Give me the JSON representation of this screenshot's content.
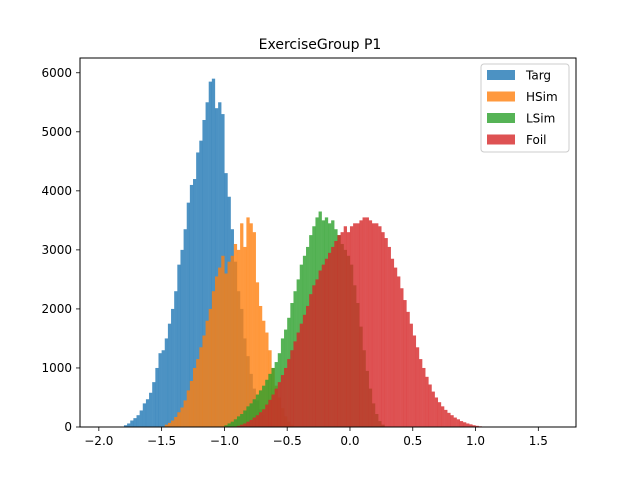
{
  "chart_data": {
    "type": "histogram",
    "title": "ExerciseGroup P1",
    "xlabel": "",
    "ylabel": "",
    "xlim": [
      -2.15,
      1.8
    ],
    "ylim": [
      0,
      6250
    ],
    "x_ticks": [
      -2.0,
      -1.5,
      -1.0,
      -0.5,
      0.0,
      0.5,
      1.0,
      1.5
    ],
    "x_tick_labels": [
      "−2.0",
      "−1.5",
      "−1.0",
      "−0.5",
      "0.0",
      "0.5",
      "1.0",
      "1.5"
    ],
    "y_ticks": [
      0,
      1000,
      2000,
      3000,
      4000,
      5000,
      6000
    ],
    "y_tick_labels": [
      "0",
      "1000",
      "2000",
      "3000",
      "4000",
      "5000",
      "6000"
    ],
    "bin_width": 0.025,
    "grid": false,
    "legend_position": "top-right",
    "alpha": 0.8,
    "series": [
      {
        "name": "Targ",
        "color": "#1f77b4",
        "bins": [
          [
            -1.8,
            30
          ],
          [
            -1.775,
            60
          ],
          [
            -1.75,
            110
          ],
          [
            -1.725,
            150
          ],
          [
            -1.7,
            200
          ],
          [
            -1.675,
            280
          ],
          [
            -1.65,
            400
          ],
          [
            -1.625,
            470
          ],
          [
            -1.6,
            580
          ],
          [
            -1.575,
            760
          ],
          [
            -1.55,
            1000
          ],
          [
            -1.525,
            1250
          ],
          [
            -1.5,
            1300
          ],
          [
            -1.475,
            1500
          ],
          [
            -1.45,
            1750
          ],
          [
            -1.425,
            2000
          ],
          [
            -1.4,
            2300
          ],
          [
            -1.375,
            2750
          ],
          [
            -1.35,
            3000
          ],
          [
            -1.325,
            3350
          ],
          [
            -1.3,
            3800
          ],
          [
            -1.275,
            4100
          ],
          [
            -1.25,
            4200
          ],
          [
            -1.225,
            4650
          ],
          [
            -1.2,
            4850
          ],
          [
            -1.175,
            5200
          ],
          [
            -1.15,
            5500
          ],
          [
            -1.125,
            5850
          ],
          [
            -1.1,
            5900
          ],
          [
            -1.075,
            5400
          ],
          [
            -1.05,
            5500
          ],
          [
            -1.025,
            5300
          ],
          [
            -1.0,
            4300
          ],
          [
            -0.975,
            3900
          ],
          [
            -0.95,
            3350
          ],
          [
            -0.925,
            2800
          ],
          [
            -0.9,
            2300
          ],
          [
            -0.875,
            2000
          ],
          [
            -0.85,
            1500
          ],
          [
            -0.825,
            1200
          ],
          [
            -0.8,
            900
          ],
          [
            -0.775,
            650
          ],
          [
            -0.75,
            450
          ],
          [
            -0.725,
            300
          ],
          [
            -0.7,
            200
          ],
          [
            -0.675,
            120
          ],
          [
            -0.65,
            70
          ],
          [
            -0.625,
            30
          ]
        ]
      },
      {
        "name": "HSim",
        "color": "#ff7f0e",
        "bins": [
          [
            -1.475,
            40
          ],
          [
            -1.45,
            70
          ],
          [
            -1.425,
            110
          ],
          [
            -1.4,
            170
          ],
          [
            -1.375,
            250
          ],
          [
            -1.35,
            330
          ],
          [
            -1.325,
            450
          ],
          [
            -1.3,
            620
          ],
          [
            -1.275,
            780
          ],
          [
            -1.25,
            1000
          ],
          [
            -1.225,
            1150
          ],
          [
            -1.2,
            1350
          ],
          [
            -1.175,
            1550
          ],
          [
            -1.15,
            1800
          ],
          [
            -1.125,
            2000
          ],
          [
            -1.1,
            2300
          ],
          [
            -1.075,
            2550
          ],
          [
            -1.05,
            2700
          ],
          [
            -1.025,
            2900
          ],
          [
            -1.0,
            2600
          ],
          [
            -0.975,
            2800
          ],
          [
            -0.95,
            2900
          ],
          [
            -0.925,
            3100
          ],
          [
            -0.9,
            3000
          ],
          [
            -0.875,
            3450
          ],
          [
            -0.85,
            3050
          ],
          [
            -0.825,
            3550
          ],
          [
            -0.8,
            3450
          ],
          [
            -0.775,
            3300
          ],
          [
            -0.75,
            2450
          ],
          [
            -0.725,
            2050
          ],
          [
            -0.7,
            1800
          ],
          [
            -0.675,
            1600
          ],
          [
            -0.65,
            1300
          ],
          [
            -0.625,
            1000
          ],
          [
            -0.6,
            700
          ],
          [
            -0.575,
            500
          ],
          [
            -0.55,
            320
          ],
          [
            -0.525,
            180
          ],
          [
            -0.5,
            90
          ],
          [
            -0.475,
            40
          ]
        ]
      },
      {
        "name": "LSim",
        "color": "#2ca02c",
        "bins": [
          [
            -1.0,
            30
          ],
          [
            -0.975,
            60
          ],
          [
            -0.95,
            90
          ],
          [
            -0.925,
            130
          ],
          [
            -0.9,
            180
          ],
          [
            -0.875,
            220
          ],
          [
            -0.85,
            280
          ],
          [
            -0.825,
            350
          ],
          [
            -0.8,
            400
          ],
          [
            -0.775,
            470
          ],
          [
            -0.75,
            550
          ],
          [
            -0.725,
            620
          ],
          [
            -0.7,
            700
          ],
          [
            -0.675,
            800
          ],
          [
            -0.65,
            900
          ],
          [
            -0.625,
            1000
          ],
          [
            -0.6,
            1100
          ],
          [
            -0.575,
            1250
          ],
          [
            -0.55,
            1500
          ],
          [
            -0.525,
            1650
          ],
          [
            -0.5,
            1850
          ],
          [
            -0.475,
            2100
          ],
          [
            -0.45,
            2300
          ],
          [
            -0.425,
            2500
          ],
          [
            -0.4,
            2750
          ],
          [
            -0.375,
            2900
          ],
          [
            -0.35,
            3050
          ],
          [
            -0.325,
            3250
          ],
          [
            -0.3,
            3400
          ],
          [
            -0.275,
            3550
          ],
          [
            -0.25,
            3650
          ],
          [
            -0.225,
            3500
          ],
          [
            -0.2,
            3550
          ],
          [
            -0.175,
            3450
          ],
          [
            -0.15,
            3500
          ],
          [
            -0.125,
            3350
          ],
          [
            -0.1,
            3250
          ],
          [
            -0.075,
            3100
          ],
          [
            -0.05,
            3000
          ],
          [
            -0.025,
            2900
          ],
          [
            0.0,
            2750
          ],
          [
            0.025,
            2400
          ],
          [
            0.05,
            2100
          ],
          [
            0.075,
            1700
          ],
          [
            0.1,
            1300
          ],
          [
            0.125,
            950
          ],
          [
            0.15,
            650
          ],
          [
            0.175,
            400
          ],
          [
            0.2,
            220
          ],
          [
            0.225,
            100
          ],
          [
            0.25,
            40
          ]
        ]
      },
      {
        "name": "Foil",
        "color": "#d62728",
        "bins": [
          [
            -0.9,
            20
          ],
          [
            -0.875,
            40
          ],
          [
            -0.85,
            60
          ],
          [
            -0.825,
            90
          ],
          [
            -0.8,
            120
          ],
          [
            -0.775,
            160
          ],
          [
            -0.75,
            200
          ],
          [
            -0.725,
            250
          ],
          [
            -0.7,
            300
          ],
          [
            -0.675,
            380
          ],
          [
            -0.65,
            460
          ],
          [
            -0.625,
            550
          ],
          [
            -0.6,
            650
          ],
          [
            -0.575,
            760
          ],
          [
            -0.55,
            880
          ],
          [
            -0.525,
            1000
          ],
          [
            -0.5,
            1150
          ],
          [
            -0.475,
            1300
          ],
          [
            -0.45,
            1450
          ],
          [
            -0.425,
            1600
          ],
          [
            -0.4,
            1750
          ],
          [
            -0.375,
            1900
          ],
          [
            -0.35,
            2050
          ],
          [
            -0.325,
            2250
          ],
          [
            -0.3,
            2400
          ],
          [
            -0.275,
            2500
          ],
          [
            -0.25,
            2650
          ],
          [
            -0.225,
            2750
          ],
          [
            -0.2,
            2850
          ],
          [
            -0.175,
            2950
          ],
          [
            -0.15,
            3050
          ],
          [
            -0.125,
            3150
          ],
          [
            -0.1,
            3250
          ],
          [
            -0.075,
            3300
          ],
          [
            -0.05,
            3400
          ],
          [
            -0.025,
            3300
          ],
          [
            0.0,
            3400
          ],
          [
            0.025,
            3450
          ],
          [
            0.05,
            3450
          ],
          [
            0.075,
            3500
          ],
          [
            0.1,
            3550
          ],
          [
            0.125,
            3550
          ],
          [
            0.15,
            3500
          ],
          [
            0.175,
            3450
          ],
          [
            0.2,
            3450
          ],
          [
            0.225,
            3400
          ],
          [
            0.25,
            3300
          ],
          [
            0.275,
            3200
          ],
          [
            0.3,
            3050
          ],
          [
            0.325,
            2850
          ],
          [
            0.35,
            2700
          ],
          [
            0.375,
            2550
          ],
          [
            0.4,
            2350
          ],
          [
            0.425,
            2150
          ],
          [
            0.45,
            1950
          ],
          [
            0.475,
            1750
          ],
          [
            0.5,
            1550
          ],
          [
            0.525,
            1350
          ],
          [
            0.55,
            1150
          ],
          [
            0.575,
            1000
          ],
          [
            0.6,
            850
          ],
          [
            0.625,
            720
          ],
          [
            0.65,
            600
          ],
          [
            0.675,
            500
          ],
          [
            0.7,
            420
          ],
          [
            0.725,
            350
          ],
          [
            0.75,
            290
          ],
          [
            0.775,
            240
          ],
          [
            0.8,
            200
          ],
          [
            0.825,
            160
          ],
          [
            0.85,
            130
          ],
          [
            0.875,
            100
          ],
          [
            0.9,
            80
          ],
          [
            0.925,
            60
          ],
          [
            0.95,
            45
          ],
          [
            0.975,
            30
          ],
          [
            1.0,
            20
          ],
          [
            1.025,
            12
          ],
          [
            1.05,
            6
          ]
        ]
      }
    ]
  }
}
